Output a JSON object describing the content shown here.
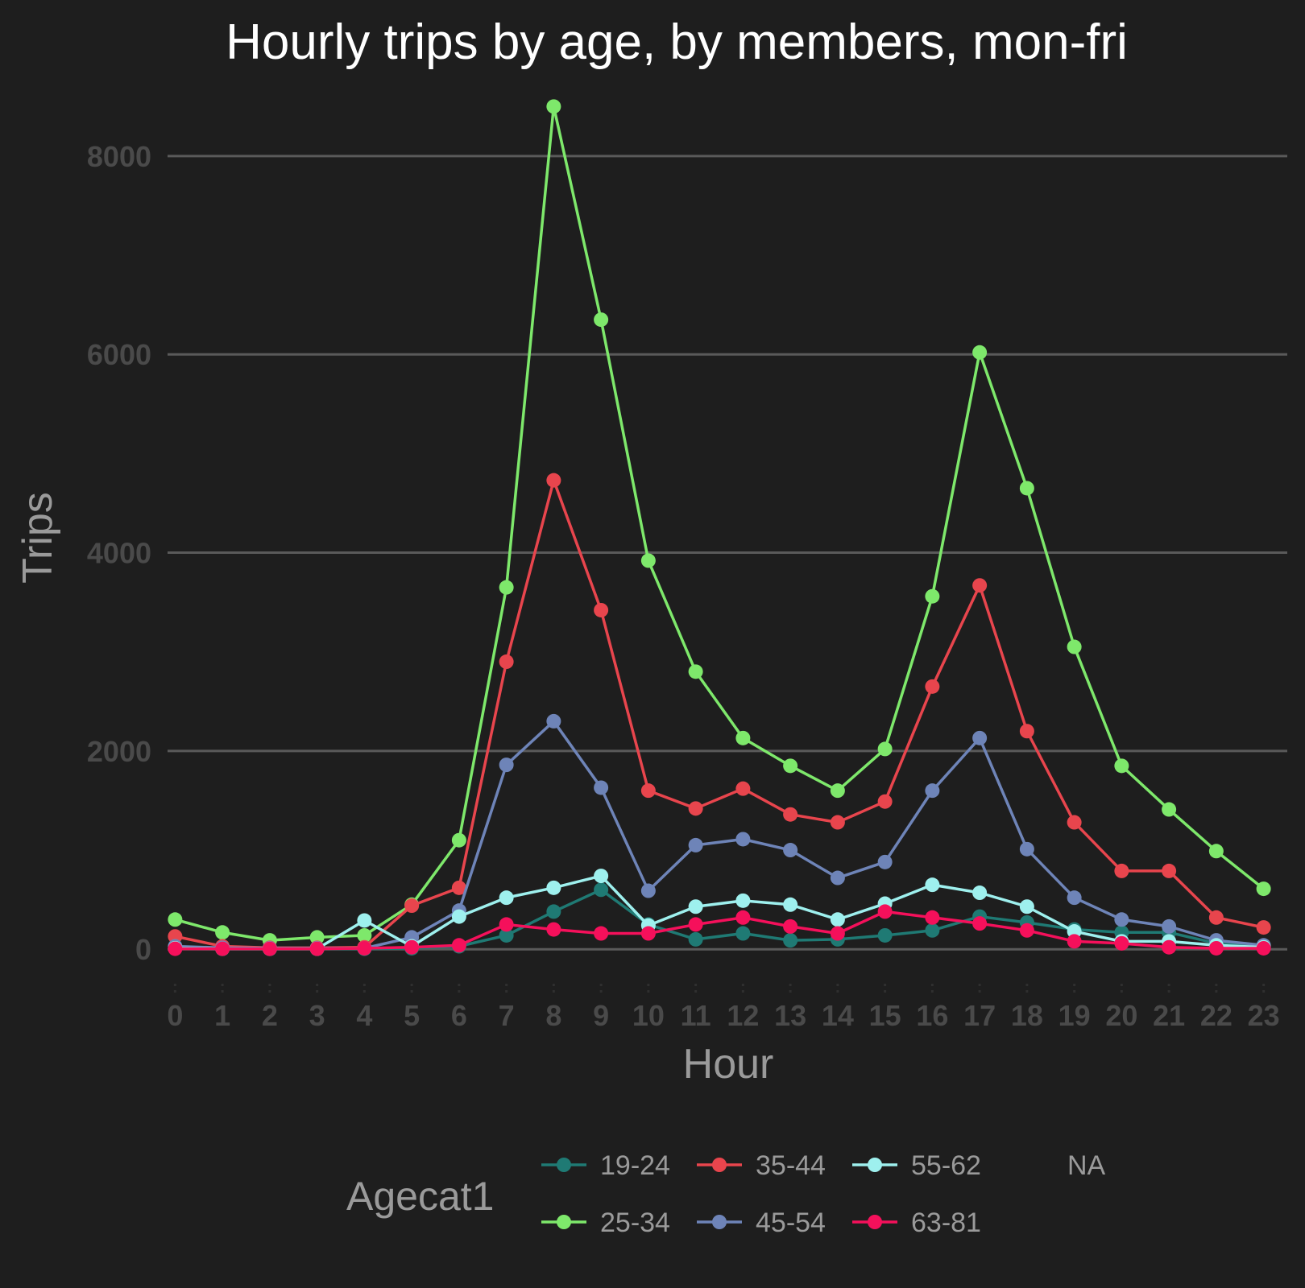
{
  "chart_data": {
    "type": "line",
    "title": "Hourly trips by age, by members, mon-fri",
    "xlabel": "Hour",
    "ylabel": "Trips",
    "x": [
      0,
      1,
      2,
      3,
      4,
      5,
      6,
      7,
      8,
      9,
      10,
      11,
      12,
      13,
      14,
      15,
      16,
      17,
      18,
      19,
      20,
      21,
      22,
      23
    ],
    "xlim": [
      -0.5,
      23.5
    ],
    "ylim": [
      -250,
      8600
    ],
    "yticks": [
      0,
      2000,
      4000,
      6000,
      8000
    ],
    "grid": true,
    "legend": {
      "title": "Agecat1",
      "position": "bottom",
      "entries": [
        "19-24",
        "35-44",
        "55-62",
        "NA",
        "25-34",
        "45-54",
        "63-81"
      ]
    },
    "series": [
      {
        "name": "19-24",
        "color": "#1f7a74",
        "values": [
          10,
          5,
          5,
          5,
          5,
          10,
          30,
          140,
          380,
          600,
          250,
          100,
          160,
          90,
          100,
          140,
          190,
          330,
          270,
          200,
          170,
          170,
          60,
          30
        ]
      },
      {
        "name": "25-34",
        "color": "#7ee86b",
        "values": [
          300,
          170,
          90,
          120,
          140,
          450,
          1100,
          3650,
          8500,
          6350,
          3920,
          2800,
          2130,
          1850,
          1600,
          2020,
          3560,
          6020,
          4650,
          3050,
          1850,
          1410,
          990,
          610
        ]
      },
      {
        "name": "35-44",
        "color": "#e8454d",
        "values": [
          130,
          30,
          15,
          15,
          20,
          440,
          620,
          2900,
          4730,
          3420,
          1600,
          1420,
          1620,
          1360,
          1280,
          1490,
          2650,
          3670,
          2200,
          1280,
          790,
          790,
          320,
          220
        ]
      },
      {
        "name": "45-54",
        "color": "#6e84b8",
        "values": [
          30,
          15,
          10,
          10,
          10,
          120,
          390,
          1860,
          2300,
          1630,
          590,
          1050,
          1110,
          1000,
          720,
          880,
          1600,
          2130,
          1010,
          520,
          300,
          230,
          90,
          40
        ]
      },
      {
        "name": "55-62",
        "color": "#9ef0ee",
        "values": [
          10,
          5,
          5,
          5,
          290,
          30,
          330,
          520,
          620,
          740,
          240,
          430,
          490,
          450,
          300,
          460,
          650,
          570,
          430,
          180,
          80,
          80,
          40,
          20
        ]
      },
      {
        "name": "63-81",
        "color": "#f5105b",
        "values": [
          5,
          5,
          5,
          5,
          10,
          20,
          40,
          250,
          200,
          160,
          160,
          250,
          320,
          230,
          160,
          380,
          320,
          260,
          190,
          80,
          60,
          20,
          10,
          10
        ]
      }
    ]
  }
}
